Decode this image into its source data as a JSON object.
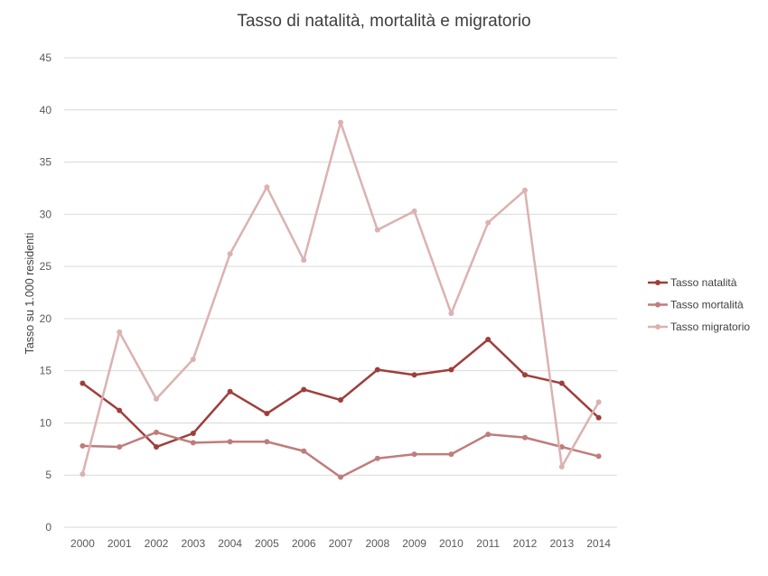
{
  "chart_data": {
    "type": "line",
    "title": "Tasso di natalità, mortalità e migratorio",
    "xlabel": "",
    "ylabel": "Tasso su 1.000 residenti",
    "ylim": [
      0,
      45
    ],
    "yticks": [
      0,
      5,
      10,
      15,
      20,
      25,
      30,
      35,
      40,
      45
    ],
    "grid": true,
    "legend_position": "right",
    "categories": [
      "2000",
      "2001",
      "2002",
      "2003",
      "2004",
      "2005",
      "2006",
      "2007",
      "2008",
      "2009",
      "2010",
      "2011",
      "2012",
      "2013",
      "2014"
    ],
    "series": [
      {
        "name": "Tasso natalità",
        "color": "#9e3f3c",
        "values": [
          13.8,
          11.2,
          7.7,
          9.0,
          13.0,
          10.9,
          13.2,
          12.2,
          15.1,
          14.6,
          15.1,
          18.0,
          14.6,
          13.8,
          10.5
        ]
      },
      {
        "name": "Tasso mortalità",
        "color": "#c07c7c",
        "values": [
          7.8,
          7.7,
          9.1,
          8.1,
          8.2,
          8.2,
          7.3,
          4.8,
          6.6,
          7.0,
          7.0,
          8.9,
          8.6,
          7.7,
          6.8
        ]
      },
      {
        "name": "Tasso migratorio",
        "color": "#dbb2b1",
        "values": [
          5.1,
          18.7,
          12.3,
          16.1,
          26.2,
          32.6,
          25.6,
          38.8,
          28.5,
          30.3,
          20.5,
          29.2,
          32.3,
          5.8,
          12.0
        ]
      }
    ]
  }
}
